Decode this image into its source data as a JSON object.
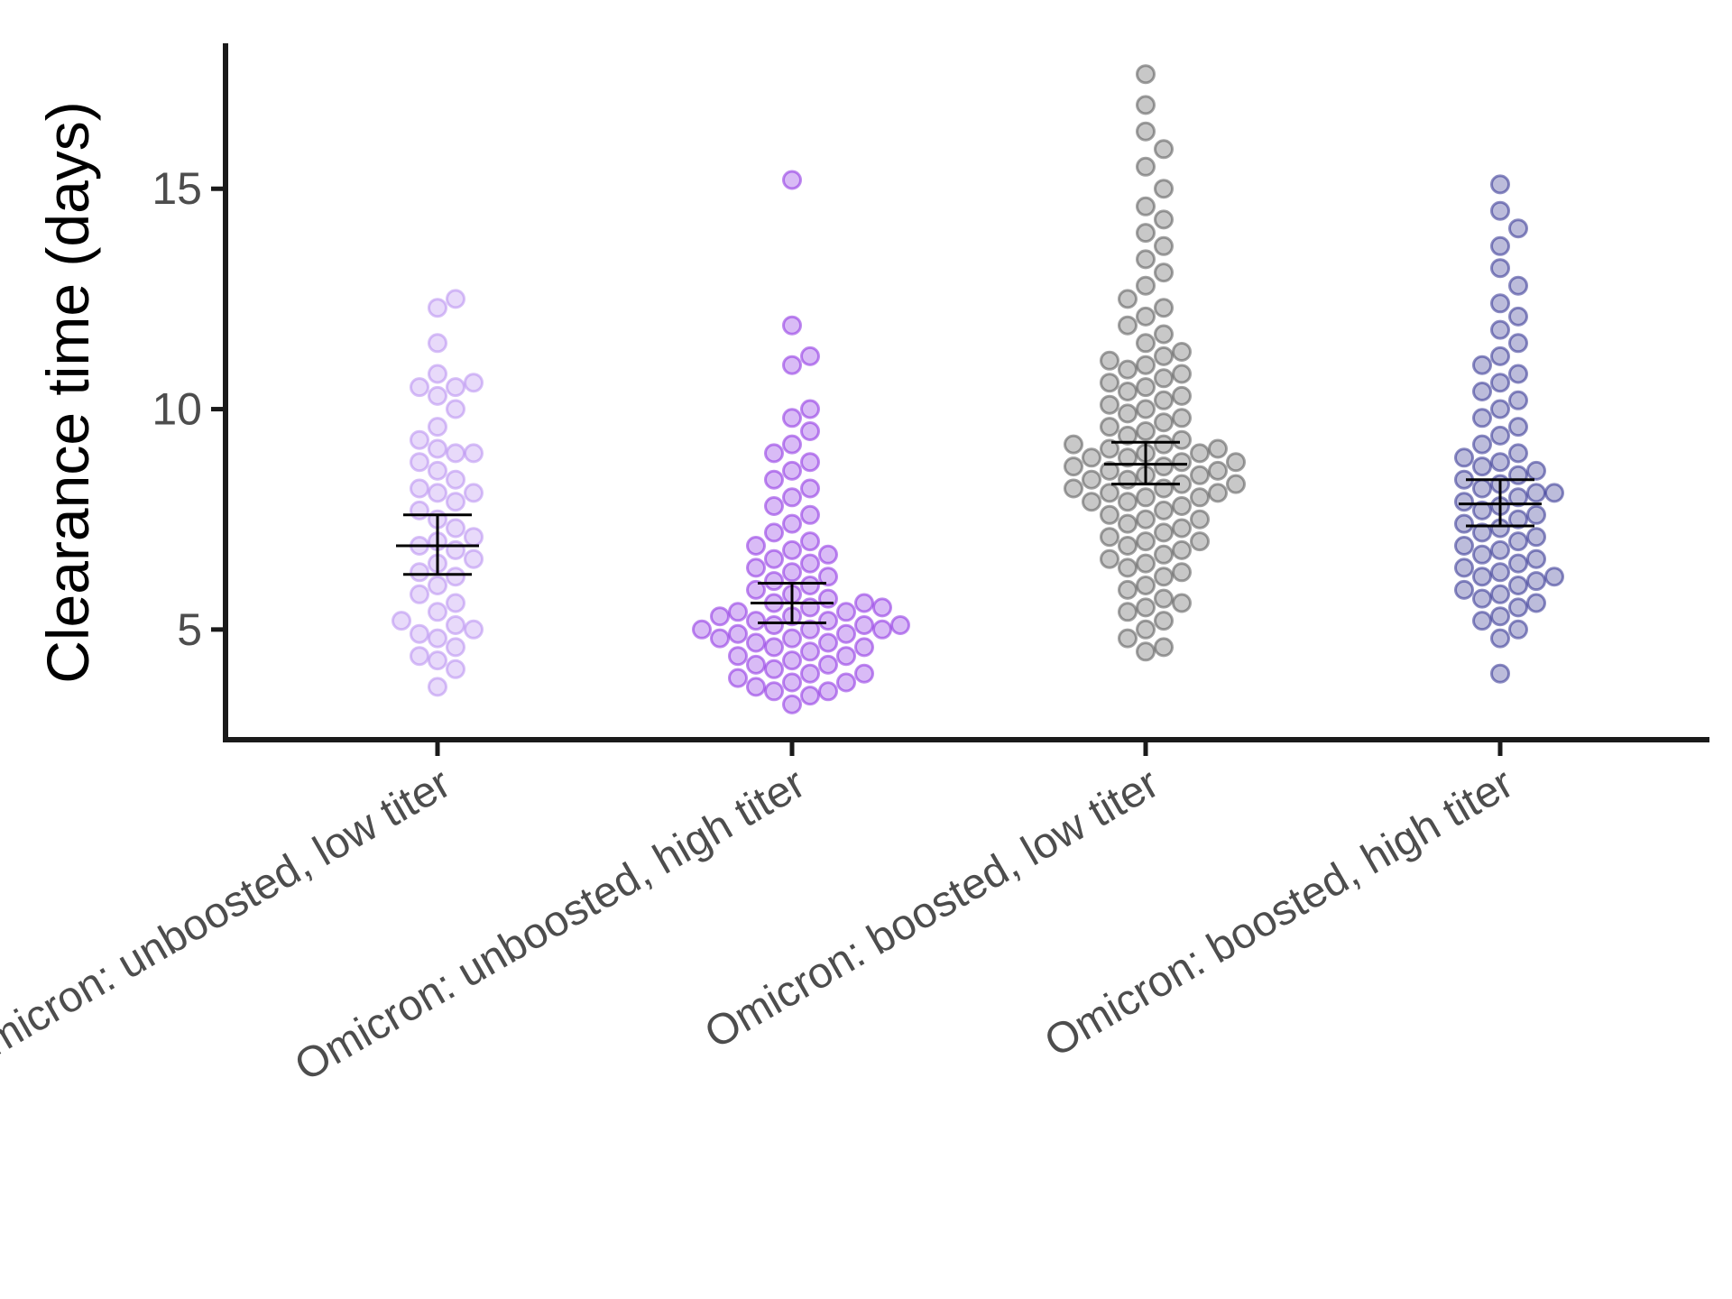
{
  "chart_data": {
    "type": "scatter",
    "subtype": "beeswarm with mean and 95% CI error bars",
    "title": "",
    "xlabel": "",
    "ylabel": "Clearance time (days)",
    "ylim": [
      2.5,
      18.3
    ],
    "y_ticks": [
      5,
      10,
      15
    ],
    "grid": false,
    "legend": "none",
    "categories": [
      "Omicron: unboosted, low titer",
      "Omicron: unboosted, high titer",
      "Omicron: boosted, low titer",
      "Omicron: boosted, high titer"
    ],
    "series": [
      {
        "category": "Omicron: unboosted, low titer",
        "color": "#B68CF0",
        "mean": 6.9,
        "ci_low": 6.25,
        "ci_high": 7.6,
        "values": [
          3.7,
          4.1,
          4.3,
          4.4,
          4.6,
          4.8,
          4.9,
          5.0,
          5.1,
          5.2,
          5.4,
          5.6,
          5.8,
          6.0,
          6.2,
          6.3,
          6.5,
          6.6,
          6.8,
          6.9,
          7.0,
          7.1,
          7.3,
          7.5,
          7.7,
          7.9,
          8.1,
          8.1,
          8.2,
          8.4,
          8.6,
          8.8,
          9.0,
          9.0,
          9.1,
          9.3,
          9.6,
          10.0,
          10.3,
          10.5,
          10.5,
          10.6,
          10.8,
          11.5,
          12.3,
          12.5
        ]
      },
      {
        "category": "Omicron: unboosted, high titer",
        "color": "#8A2BE2",
        "mean": 5.6,
        "ci_low": 5.15,
        "ci_high": 6.05,
        "values": [
          3.3,
          3.5,
          3.6,
          3.6,
          3.7,
          3.8,
          3.8,
          3.9,
          4.0,
          4.0,
          4.1,
          4.2,
          4.2,
          4.3,
          4.4,
          4.4,
          4.5,
          4.6,
          4.6,
          4.7,
          4.7,
          4.8,
          4.8,
          4.9,
          4.9,
          5.0,
          5.0,
          5.0,
          5.1,
          5.1,
          5.1,
          5.2,
          5.2,
          5.3,
          5.3,
          5.4,
          5.4,
          5.5,
          5.5,
          5.6,
          5.6,
          5.7,
          5.8,
          5.9,
          6.0,
          6.1,
          6.2,
          6.3,
          6.4,
          6.5,
          6.6,
          6.7,
          6.8,
          6.9,
          7.0,
          7.2,
          7.4,
          7.6,
          7.8,
          8.0,
          8.2,
          8.4,
          8.6,
          8.8,
          9.0,
          9.2,
          9.5,
          9.8,
          10.0,
          11.0,
          11.2,
          11.9,
          15.2
        ]
      },
      {
        "category": "Omicron: boosted, low titer",
        "color": "#555555",
        "mean": 8.75,
        "ci_low": 8.3,
        "ci_high": 9.25,
        "values": [
          4.5,
          4.6,
          4.8,
          5.0,
          5.2,
          5.4,
          5.5,
          5.6,
          5.7,
          5.9,
          6.0,
          6.2,
          6.3,
          6.4,
          6.5,
          6.6,
          6.7,
          6.8,
          6.9,
          7.0,
          7.0,
          7.1,
          7.2,
          7.3,
          7.4,
          7.5,
          7.5,
          7.6,
          7.7,
          7.8,
          7.9,
          7.9,
          8.0,
          8.0,
          8.1,
          8.1,
          8.2,
          8.2,
          8.3,
          8.3,
          8.4,
          8.4,
          8.5,
          8.5,
          8.6,
          8.6,
          8.7,
          8.7,
          8.8,
          8.8,
          8.9,
          8.9,
          9.0,
          9.0,
          9.1,
          9.1,
          9.2,
          9.2,
          9.3,
          9.4,
          9.5,
          9.6,
          9.7,
          9.8,
          9.9,
          10.0,
          10.1,
          10.2,
          10.3,
          10.4,
          10.5,
          10.6,
          10.7,
          10.8,
          10.9,
          11.0,
          11.1,
          11.2,
          11.3,
          11.5,
          11.7,
          11.9,
          12.1,
          12.3,
          12.5,
          12.8,
          13.1,
          13.4,
          13.7,
          14.0,
          14.3,
          14.6,
          15.0,
          15.5,
          15.9,
          16.3,
          16.9,
          17.6
        ]
      },
      {
        "category": "Omicron: boosted, high titer",
        "color": "#2E2E8F",
        "mean": 7.85,
        "ci_low": 7.35,
        "ci_high": 8.4,
        "values": [
          4.0,
          4.8,
          5.0,
          5.2,
          5.3,
          5.5,
          5.6,
          5.7,
          5.8,
          5.9,
          6.0,
          6.1,
          6.2,
          6.2,
          6.3,
          6.4,
          6.5,
          6.6,
          6.7,
          6.8,
          6.9,
          7.0,
          7.1,
          7.2,
          7.3,
          7.4,
          7.5,
          7.6,
          7.7,
          7.8,
          7.9,
          8.0,
          8.1,
          8.1,
          8.2,
          8.3,
          8.4,
          8.5,
          8.6,
          8.7,
          8.8,
          8.9,
          9.0,
          9.2,
          9.4,
          9.6,
          9.8,
          10.0,
          10.2,
          10.4,
          10.6,
          10.8,
          11.0,
          11.2,
          11.5,
          11.8,
          12.1,
          12.4,
          12.8,
          13.2,
          13.7,
          14.1,
          14.5,
          15.1
        ]
      }
    ]
  }
}
